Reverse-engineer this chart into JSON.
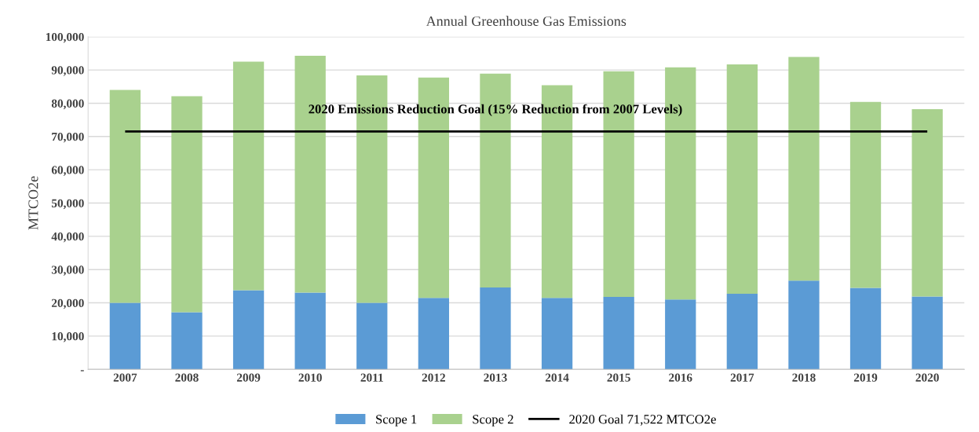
{
  "chart_data": {
    "type": "bar",
    "title": "Annual Greenhouse Gas Emissions",
    "ylabel": "MTCO2e",
    "categories": [
      "2007",
      "2008",
      "2009",
      "2010",
      "2011",
      "2012",
      "2013",
      "2014",
      "2015",
      "2016",
      "2017",
      "2018",
      "2019",
      "2020"
    ],
    "stacked": true,
    "series": [
      {
        "name": "Scope 1",
        "color": "#5b9bd5",
        "values": [
          20000,
          17200,
          23800,
          23100,
          20000,
          21500,
          24600,
          21500,
          21800,
          21000,
          22700,
          26700,
          24500,
          21900
        ]
      },
      {
        "name": "Scope 2",
        "color": "#a9d18e",
        "values": [
          64000,
          64900,
          68700,
          71200,
          68400,
          66200,
          64300,
          63900,
          67800,
          69800,
          69000,
          67200,
          55900,
          56300
        ]
      }
    ],
    "ylim": [
      0,
      100000
    ],
    "yticks": [
      {
        "value": 0,
        "label": "-"
      },
      {
        "value": 10000,
        "label": "10,000"
      },
      {
        "value": 20000,
        "label": "20,000"
      },
      {
        "value": 30000,
        "label": "30,000"
      },
      {
        "value": 40000,
        "label": "40,000"
      },
      {
        "value": 50000,
        "label": "50,000"
      },
      {
        "value": 60000,
        "label": "60,000"
      },
      {
        "value": 70000,
        "label": "70,000"
      },
      {
        "value": 80000,
        "label": "80,000"
      },
      {
        "value": 90000,
        "label": "90,000"
      },
      {
        "value": 100000,
        "label": "100,000"
      }
    ],
    "ref_lines": [
      {
        "axis": "y",
        "value": 71522,
        "label": "2020 Goal 71,522 MTCO2e",
        "color": "#000000",
        "line_style": "solid"
      }
    ],
    "annotations": [
      {
        "text": "2020 Emissions Reduction Goal (15% Reduction from 2007 Levels)",
        "x": "2013",
        "y": 71522
      }
    ],
    "grid": "y",
    "legend": "bottom"
  }
}
